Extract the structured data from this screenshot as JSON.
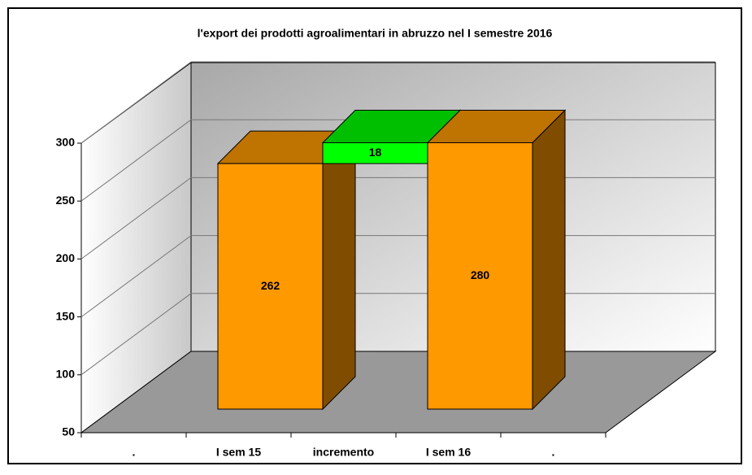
{
  "chart_data": {
    "type": "waterfall",
    "title": "l'export dei prodotti agroalimentari in abruzzo nel I semestre 2016",
    "categories": [
      ".",
      "I sem 15",
      "incremento",
      "I sem 16",
      "."
    ],
    "values": [
      null,
      262,
      18,
      280,
      null
    ],
    "colors": [
      "#ff9900",
      "#ff9900",
      "#00ff00",
      "#ff9900",
      "#ff9900"
    ],
    "ylim": [
      50,
      300
    ],
    "yticks": [
      50,
      100,
      150,
      200,
      250,
      300
    ],
    "grid": true
  }
}
